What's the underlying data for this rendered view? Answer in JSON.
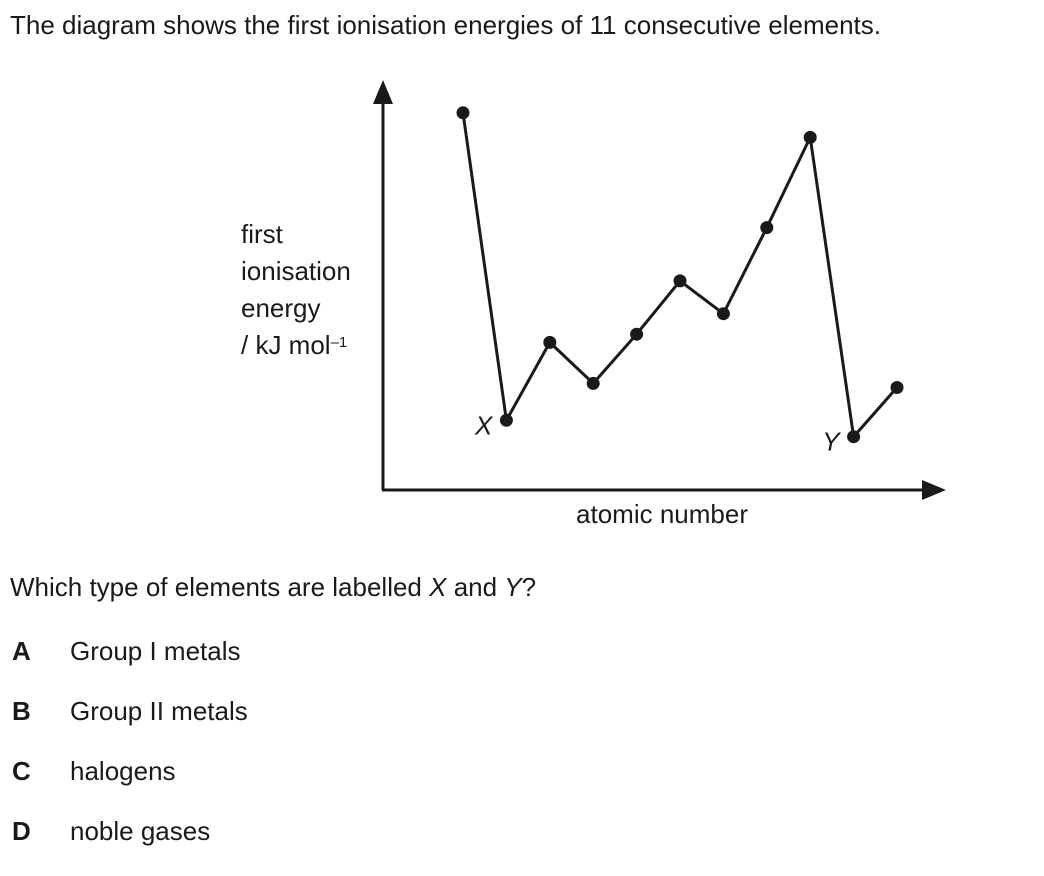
{
  "intro_text": "The diagram shows the first ionisation energies of 11 consecutive elements.",
  "question": {
    "prefix": "Which type of elements are labelled ",
    "x": "X",
    "middle": " and ",
    "y": "Y",
    "suffix": "?"
  },
  "options": [
    {
      "letter": "A",
      "text": "Group I metals"
    },
    {
      "letter": "B",
      "text": "Group II metals"
    },
    {
      "letter": "C",
      "text": "halogens"
    },
    {
      "letter": "D",
      "text": "noble gases"
    }
  ],
  "chart_data": {
    "type": "line",
    "xlabel": "atomic number",
    "ylabel_lines": [
      "first",
      "ionisation",
      "energy"
    ],
    "ylabel_unit": "/ kJ mol",
    "ylabel_unit_sup": "–1",
    "x": [
      1,
      2,
      3,
      4,
      5,
      6,
      7,
      8,
      9,
      10,
      11
    ],
    "values": [
      92,
      17,
      36,
      26,
      38,
      51,
      43,
      64,
      86,
      13,
      25
    ],
    "ylim": [
      0,
      100
    ],
    "point_labels": [
      {
        "index": 1,
        "text": "X"
      },
      {
        "index": 9,
        "text": "Y"
      }
    ],
    "grid": false,
    "line_color": "#1a1a1a"
  }
}
